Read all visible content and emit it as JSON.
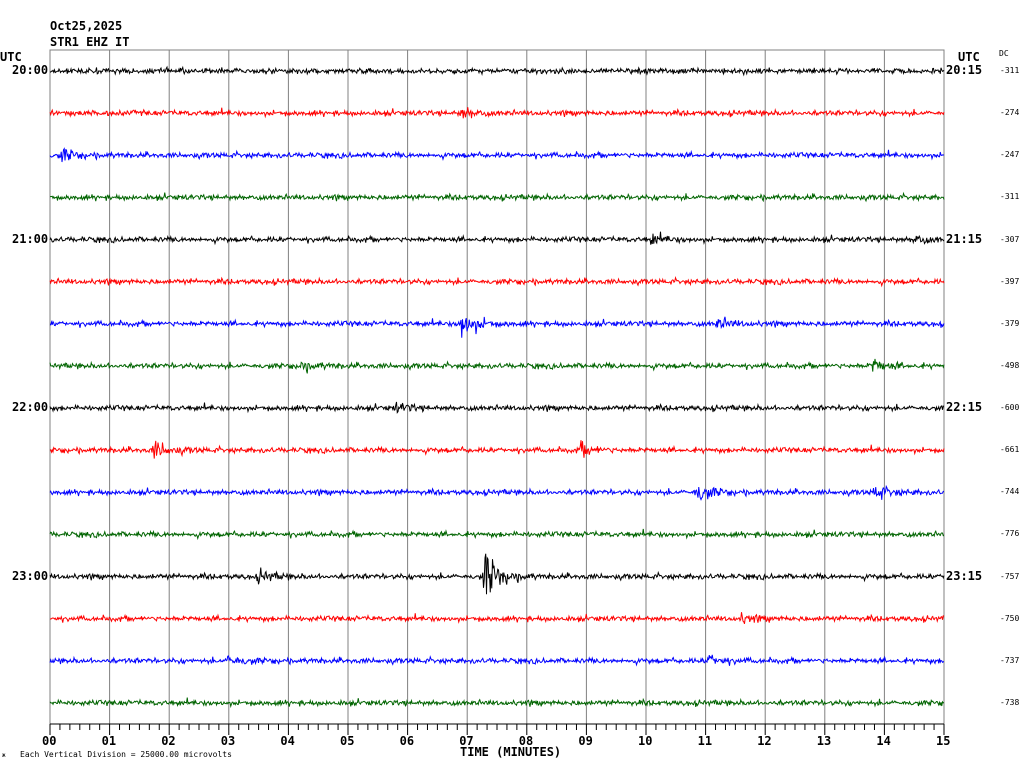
{
  "header": {
    "date": "Oct25,2025",
    "station": "STR1 EHZ IT"
  },
  "left_utc_label": "UTC",
  "right_utc_label": "UTC",
  "dc_label": "DC",
  "footer": {
    "scale_note": "Each Vertical Division = 25000.00 microvolts",
    "corner_mark": "ж"
  },
  "colors": {
    "trace_cycle": [
      "#000000",
      "#ff0000",
      "#0000ff",
      "#006400"
    ],
    "grid": "#808080"
  },
  "chart_data": {
    "type": "line",
    "title": "",
    "xlabel": "TIME (MINUTES)",
    "ylabel": "",
    "x_ticks": [
      "00",
      "01",
      "02",
      "03",
      "04",
      "05",
      "06",
      "07",
      "08",
      "09",
      "10",
      "11",
      "12",
      "13",
      "14",
      "15"
    ],
    "xlim": [
      0,
      15
    ],
    "grid": true,
    "hour_labels_left": [
      "20:00",
      "21:00",
      "22:00",
      "23:00"
    ],
    "hour_labels_right": [
      "20:15",
      "21:15",
      "22:15",
      "23:15"
    ],
    "dc_offsets": [
      "-311",
      "-274",
      "-247",
      "-311",
      "-307",
      "-397",
      "-379",
      "-498",
      "-600",
      "-661",
      "-744",
      "-776",
      "-757",
      "-750",
      "-737",
      "-738"
    ],
    "series": [
      {
        "values": [],
        "events": []
      },
      {
        "values": [],
        "events": [
          {
            "minute": 6.9,
            "amplitude": 1.0
          }
        ]
      },
      {
        "values": [],
        "events": [
          {
            "minute": 0.2,
            "amplitude": 1.1
          }
        ]
      },
      {
        "values": [],
        "events": []
      },
      {
        "values": [],
        "events": [
          {
            "minute": 10.1,
            "amplitude": 0.9
          },
          {
            "minute": 14.5,
            "amplitude": 0.8
          }
        ]
      },
      {
        "values": [],
        "events": []
      },
      {
        "values": [],
        "events": [
          {
            "minute": 6.9,
            "amplitude": 2.8
          },
          {
            "minute": 11.2,
            "amplitude": 0.9
          }
        ]
      },
      {
        "values": [],
        "events": [
          {
            "minute": 4.2,
            "amplitude": 0.9
          },
          {
            "minute": 13.8,
            "amplitude": 1.3
          }
        ]
      },
      {
        "values": [],
        "events": [
          {
            "minute": 5.8,
            "amplitude": 0.8
          }
        ]
      },
      {
        "values": [],
        "events": [
          {
            "minute": 1.75,
            "amplitude": 1.6
          },
          {
            "minute": 8.9,
            "amplitude": 1.0
          }
        ]
      },
      {
        "values": [],
        "events": [
          {
            "minute": 10.85,
            "amplitude": 1.8
          },
          {
            "minute": 13.85,
            "amplitude": 1.2
          }
        ]
      },
      {
        "values": [],
        "events": []
      },
      {
        "values": [],
        "events": [
          {
            "minute": 3.5,
            "amplitude": 0.9
          },
          {
            "minute": 7.3,
            "amplitude": 4.5
          }
        ]
      },
      {
        "values": [],
        "events": [
          {
            "minute": 11.6,
            "amplitude": 0.7
          }
        ]
      },
      {
        "values": [],
        "events": [
          {
            "minute": 3.0,
            "amplitude": 1.0
          },
          {
            "minute": 11.05,
            "amplitude": 1.1
          }
        ]
      },
      {
        "values": [],
        "events": []
      }
    ]
  }
}
